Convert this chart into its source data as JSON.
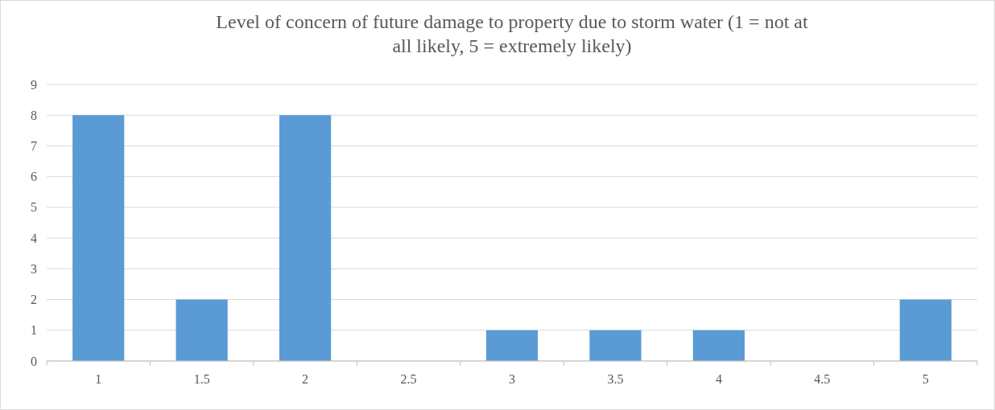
{
  "chart_data": {
    "type": "bar",
    "title": "Level of concern of future damage to property due to storm water (1 = not at all likely, 5 = extremely likely)",
    "categories": [
      "1",
      "1.5",
      "2",
      "2.5",
      "3",
      "3.5",
      "4",
      "4.5",
      "5"
    ],
    "values": [
      8,
      2,
      8,
      0,
      1,
      1,
      1,
      0,
      2
    ],
    "color": "#5b9bd5",
    "ylim": [
      0,
      9
    ],
    "yticks": [
      0,
      1,
      2,
      3,
      4,
      5,
      6,
      7,
      8,
      9
    ],
    "grid": "y"
  }
}
